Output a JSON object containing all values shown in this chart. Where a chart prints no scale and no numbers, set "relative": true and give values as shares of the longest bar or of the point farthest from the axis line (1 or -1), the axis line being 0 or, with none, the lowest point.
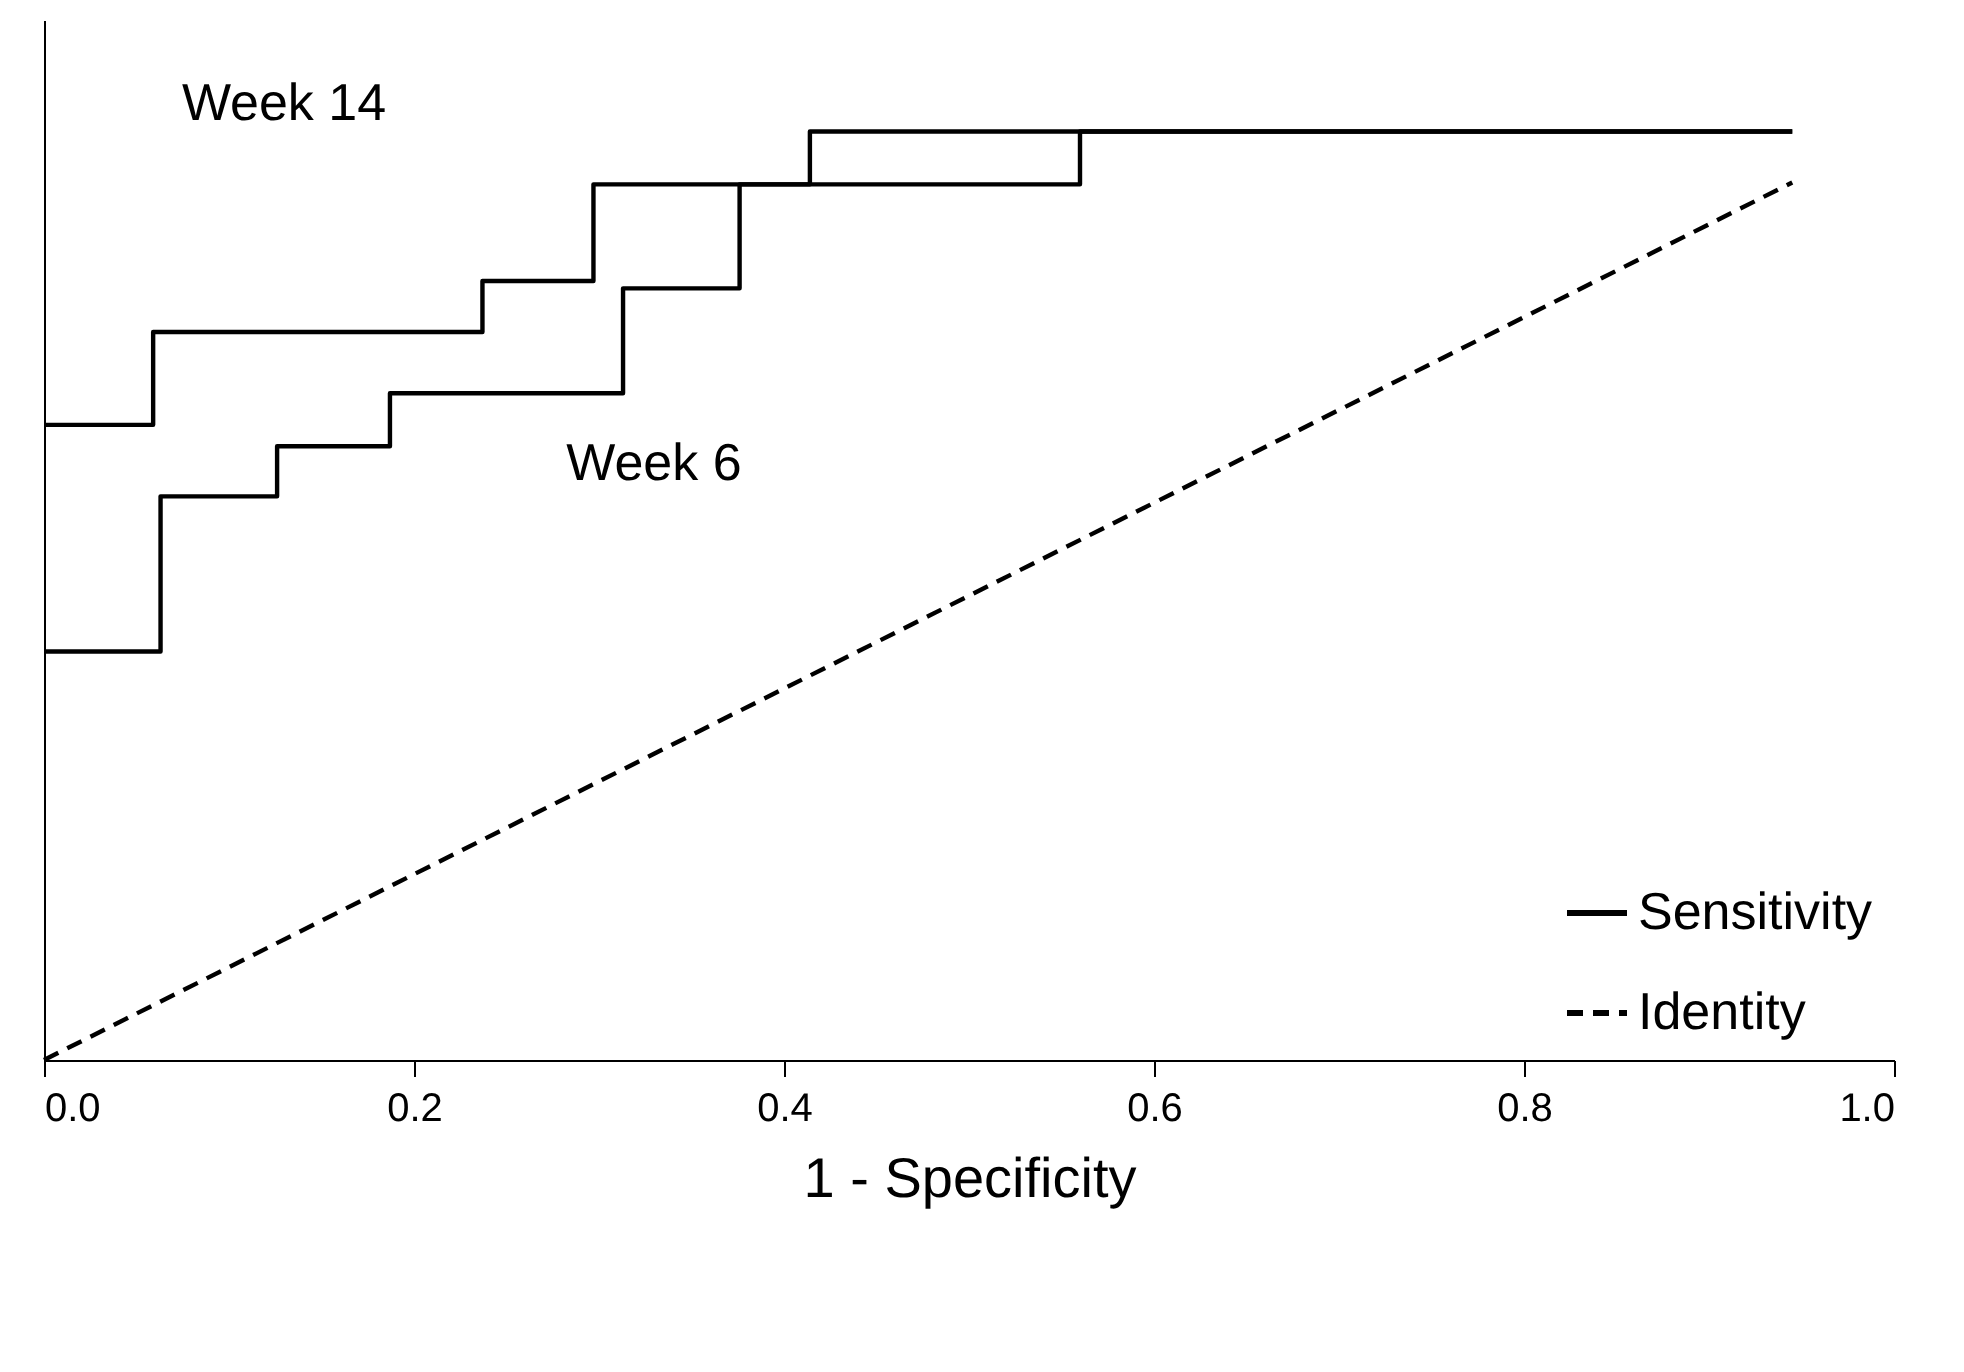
{
  "chart_data": {
    "type": "step",
    "xlabel": "1 - Specificity",
    "relative": true,
    "xlim": [
      0,
      1
    ],
    "xticks": [
      {
        "value": 0,
        "label": "0.0"
      },
      0.2,
      0.4,
      0.6,
      0.8,
      {
        "value": 1,
        "label": "1.0"
      }
    ],
    "tick_labels": "x",
    "grid": false,
    "legend": "bottom right",
    "line_style": "solid",
    "marker": "none",
    "series": [
      {
        "name": "Sensitivity",
        "color": "#000000",
        "x": [
          0,
          0.059,
          0.237,
          0.297,
          0.414,
          0.945
        ],
        "values": [
          0.684,
          0.784,
          0.839,
          0.943,
          1.0,
          1.0
        ]
      },
      {
        "color": "#000000",
        "x": [
          0,
          0.063,
          0.126,
          0.187,
          0.313,
          0.376,
          0.56,
          0.945
        ],
        "values": [
          0.44,
          0.607,
          0.661,
          0.718,
          0.831,
          0.943,
          1.0,
          1.0
        ]
      },
      {
        "name": "Identity",
        "type": "line",
        "line_style": "dashed",
        "color": "#000000",
        "x": [
          0,
          0.945
        ],
        "values": [
          0,
          0.945
        ]
      }
    ],
    "annotations": [
      "Week 14",
      "Week 6"
    ]
  }
}
